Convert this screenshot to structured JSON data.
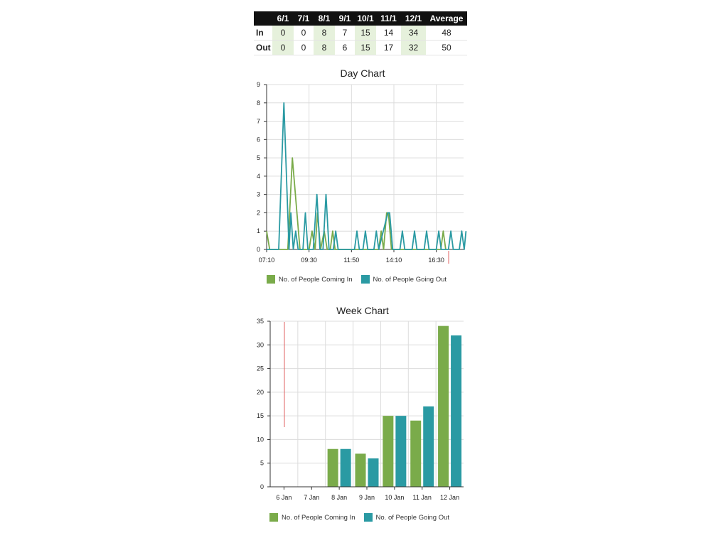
{
  "table": {
    "columns": [
      "",
      "6/1",
      "7/1",
      "8/1",
      "9/1",
      "10/1",
      "11/1",
      "12/1",
      "Average"
    ],
    "rows": [
      {
        "label": "In",
        "values": [
          "0",
          "0",
          "8",
          "7",
          "15",
          "14",
          "34",
          "48"
        ]
      },
      {
        "label": "Out",
        "values": [
          "0",
          "0",
          "8",
          "6",
          "15",
          "17",
          "32",
          "50"
        ]
      }
    ]
  },
  "colors": {
    "in": "#7aab4a",
    "out": "#2a9aa3",
    "marker": "#e06060"
  },
  "legend": {
    "in": "No. of People Coming In",
    "out": "No. of People Going Out"
  },
  "chart_data": [
    {
      "type": "line",
      "title": "Day Chart",
      "xlabel": "",
      "ylabel": "",
      "x_ticks": [
        "07:10",
        "09:30",
        "11:50",
        "14:10",
        "16:30"
      ],
      "xlim": [
        "07:10",
        "18:00"
      ],
      "ylim": [
        0,
        9
      ],
      "y_ticks": [
        0,
        1,
        2,
        3,
        4,
        5,
        6,
        7,
        8,
        9
      ],
      "grid": true,
      "legend_position": "bottom",
      "series": [
        {
          "name": "No. of People Coming In",
          "color": "#7aab4a",
          "points": [
            [
              "07:10",
              1
            ],
            [
              "07:20",
              0
            ],
            [
              "08:20",
              0
            ],
            [
              "08:35",
              5
            ],
            [
              "08:50",
              2
            ],
            [
              "09:00",
              0
            ],
            [
              "09:30",
              0
            ],
            [
              "09:40",
              1
            ],
            [
              "09:50",
              0
            ],
            [
              "09:58",
              2
            ],
            [
              "10:08",
              0
            ],
            [
              "10:20",
              1
            ],
            [
              "10:30",
              0
            ],
            [
              "10:40",
              0
            ],
            [
              "10:48",
              1
            ],
            [
              "10:56",
              0
            ],
            [
              "13:20",
              0
            ],
            [
              "13:28",
              1
            ],
            [
              "13:36",
              0
            ],
            [
              "13:46",
              2
            ],
            [
              "13:52",
              2
            ],
            [
              "14:02",
              0
            ],
            [
              "16:45",
              0
            ],
            [
              "16:53",
              1
            ],
            [
              "17:01",
              0
            ]
          ]
        },
        {
          "name": "No. of People Going Out",
          "color": "#2a9aa3",
          "points": [
            [
              "07:10",
              0
            ],
            [
              "07:50",
              0
            ],
            [
              "08:07",
              8
            ],
            [
              "08:24",
              0
            ],
            [
              "08:30",
              2
            ],
            [
              "08:38",
              0
            ],
            [
              "08:46",
              1
            ],
            [
              "08:54",
              0
            ],
            [
              "09:10",
              0
            ],
            [
              "09:18",
              2
            ],
            [
              "09:26",
              0
            ],
            [
              "09:44",
              0
            ],
            [
              "09:56",
              3
            ],
            [
              "10:06",
              0
            ],
            [
              "10:16",
              0
            ],
            [
              "10:26",
              3
            ],
            [
              "10:36",
              0
            ],
            [
              "10:50",
              0
            ],
            [
              "10:58",
              1
            ],
            [
              "11:06",
              0
            ],
            [
              "12:00",
              0
            ],
            [
              "12:08",
              1
            ],
            [
              "12:16",
              0
            ],
            [
              "12:28",
              0
            ],
            [
              "12:36",
              1
            ],
            [
              "12:44",
              0
            ],
            [
              "13:04",
              0
            ],
            [
              "13:12",
              1
            ],
            [
              "13:20",
              0
            ],
            [
              "13:50",
              2
            ],
            [
              "13:56",
              2
            ],
            [
              "14:06",
              0
            ],
            [
              "14:30",
              0
            ],
            [
              "14:38",
              1
            ],
            [
              "14:46",
              0
            ],
            [
              "15:10",
              0
            ],
            [
              "15:18",
              1
            ],
            [
              "15:26",
              0
            ],
            [
              "15:50",
              0
            ],
            [
              "15:58",
              1
            ],
            [
              "16:06",
              0
            ],
            [
              "16:30",
              0
            ],
            [
              "16:38",
              1
            ],
            [
              "16:46",
              0
            ],
            [
              "17:10",
              0
            ],
            [
              "17:18",
              1
            ],
            [
              "17:26",
              0
            ],
            [
              "17:46",
              0
            ],
            [
              "17:54",
              1
            ],
            [
              "18:02",
              0
            ],
            [
              "18:08",
              1
            ]
          ]
        }
      ]
    },
    {
      "type": "bar",
      "title": "Week Chart",
      "xlabel": "",
      "ylabel": "",
      "categories": [
        "6 Jan",
        "7 Jan",
        "8 Jan",
        "9 Jan",
        "10 Jan",
        "11 Jan",
        "12 Jan"
      ],
      "ylim": [
        0,
        35
      ],
      "y_ticks": [
        0,
        5,
        10,
        15,
        20,
        25,
        30,
        35
      ],
      "grid": true,
      "legend_position": "bottom",
      "series": [
        {
          "name": "No. of People Coming In",
          "color": "#7aab4a",
          "values": [
            0,
            0,
            8,
            7,
            15,
            14,
            34
          ]
        },
        {
          "name": "No. of People Going Out",
          "color": "#2a9aa3",
          "values": [
            0,
            0,
            8,
            6,
            15,
            17,
            32
          ]
        }
      ]
    }
  ]
}
